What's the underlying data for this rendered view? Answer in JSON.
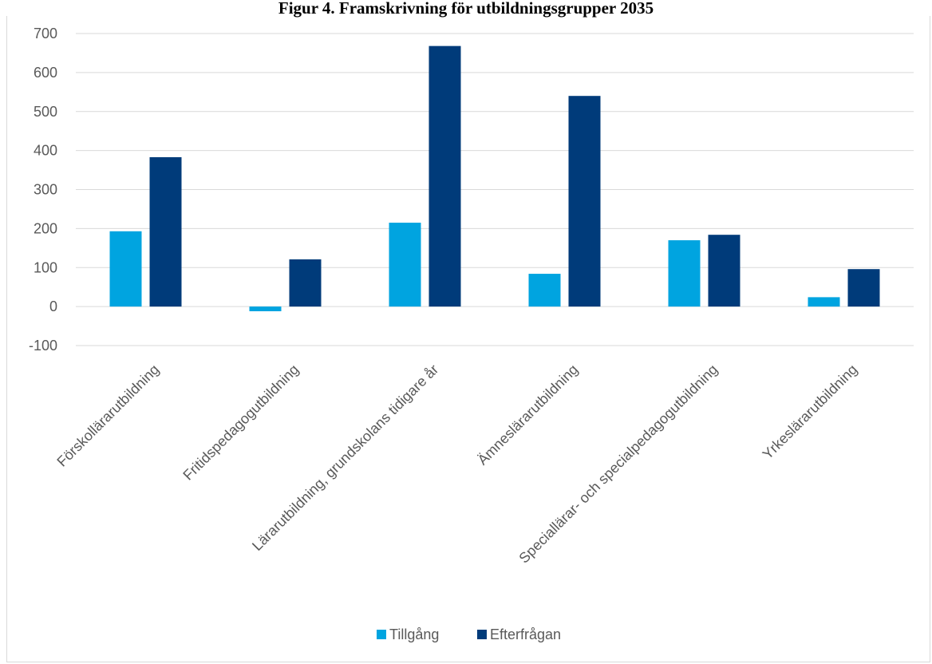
{
  "chart_data": {
    "type": "bar",
    "title": "Figur 4. Framskrivning för utbildningsgrupper 2035",
    "categories": [
      "Förskollärarutbildning",
      "Fritidspedagogutbildning",
      "Lärarutbildning, grundskolans tidigare år",
      "Ämneslärarutbildning",
      "Speciallärar- och specialpedagogutbildning",
      "Yrkeslärarutbildning"
    ],
    "series": [
      {
        "name": "Tillgång",
        "color": "#00a4e0",
        "values": [
          193,
          -12,
          215,
          84,
          170,
          24
        ]
      },
      {
        "name": "Efterfrågan",
        "color": "#003b7a",
        "values": [
          383,
          121,
          668,
          540,
          184,
          96
        ]
      }
    ],
    "ylim": [
      -100,
      700
    ],
    "yticks": [
      -100,
      0,
      100,
      200,
      300,
      400,
      500,
      600,
      700
    ],
    "grid": true,
    "legend_position": "bottom",
    "xlabel": "",
    "ylabel": ""
  }
}
